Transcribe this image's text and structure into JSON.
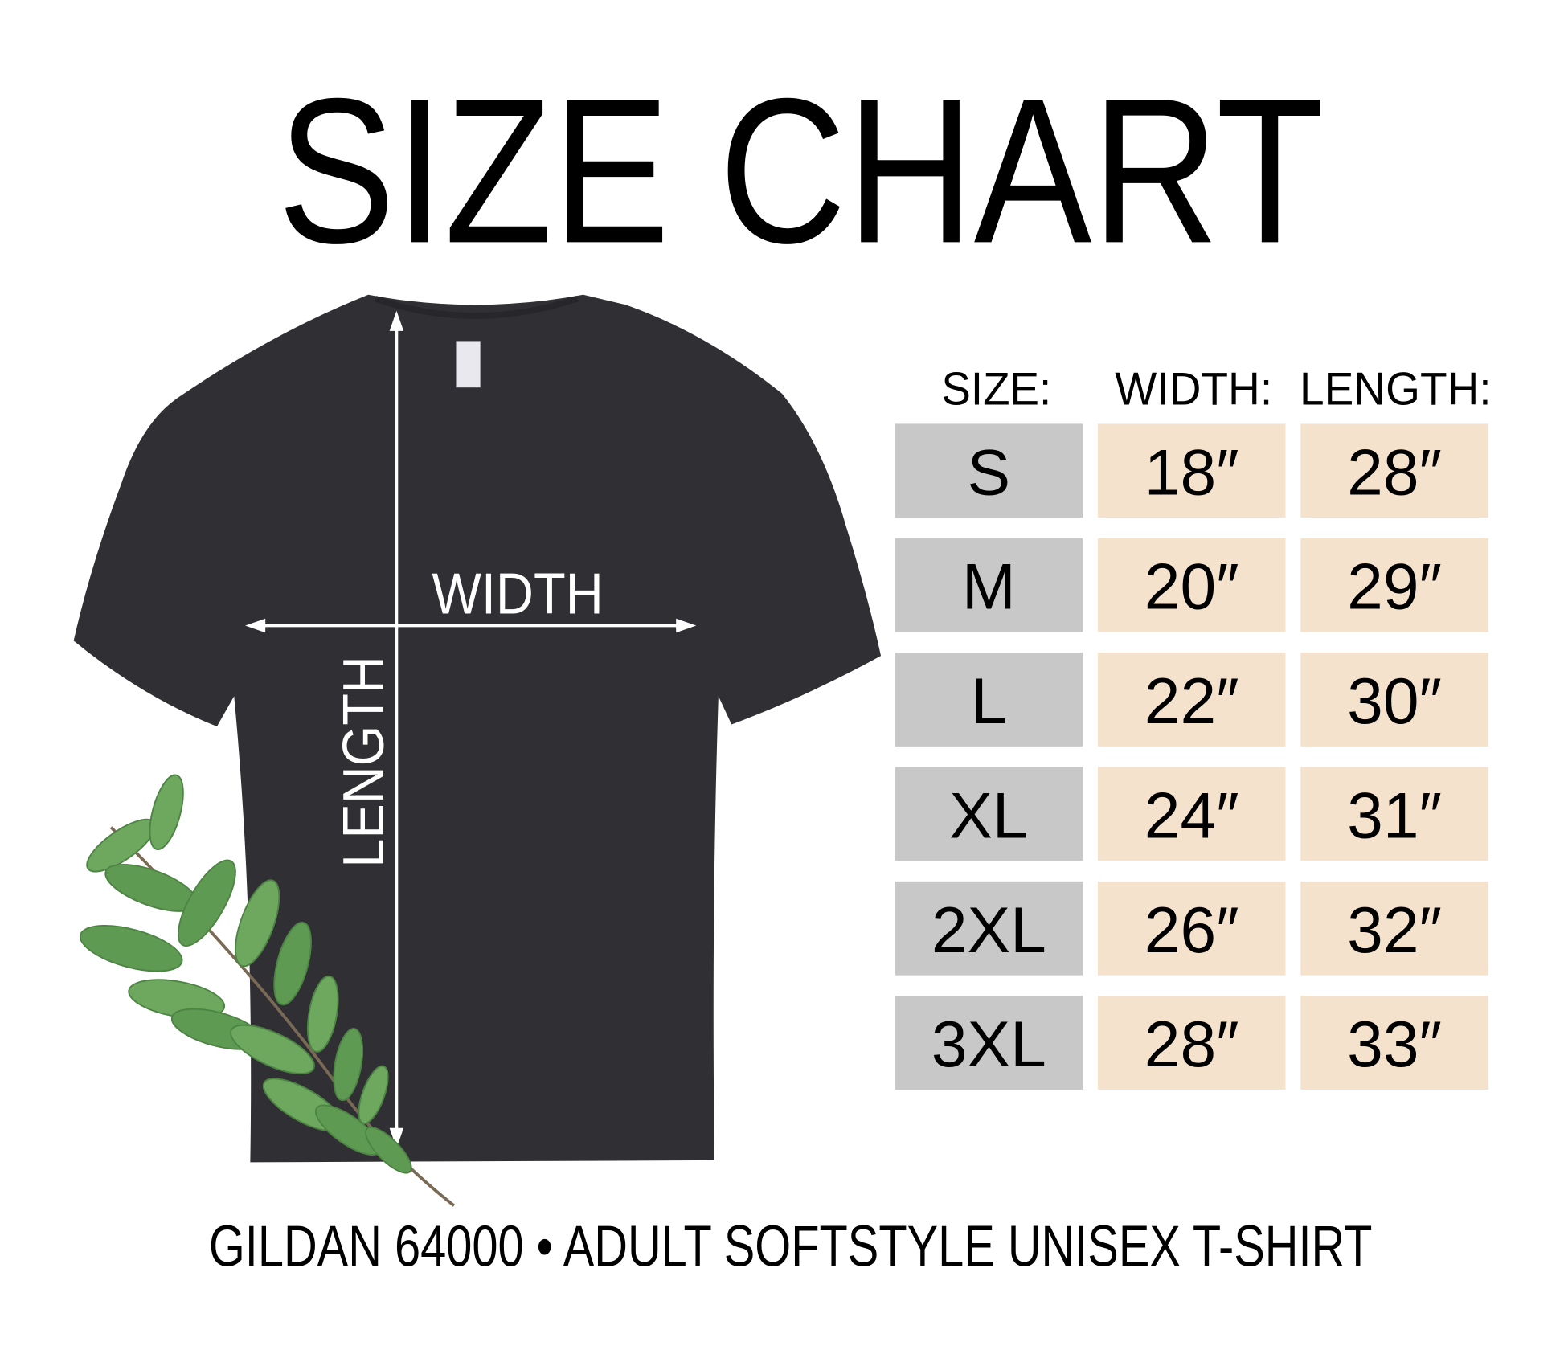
{
  "title": "SIZE CHART",
  "garment": {
    "width_label": "WIDTH",
    "length_label": "LENGTH",
    "shirt_color": "#2f2f34"
  },
  "footer": "GILDAN 64000 • ADULT SOFTSTYLE UNISEX T-SHIRT",
  "colors": {
    "size_cell": "#c8c8c8",
    "value_cell": "#f5e2cd",
    "text": "#000000"
  },
  "chart_data": {
    "type": "table",
    "columns": [
      "SIZE:",
      "WIDTH:",
      "LENGTH:"
    ],
    "rows": [
      {
        "size": "S",
        "width": "18″",
        "length": "28″"
      },
      {
        "size": "M",
        "width": "20″",
        "length": "29″"
      },
      {
        "size": "L",
        "width": "22″",
        "length": "30″"
      },
      {
        "size": "XL",
        "width": "24″",
        "length": "31″"
      },
      {
        "size": "2XL",
        "width": "26″",
        "length": "32″"
      },
      {
        "size": "3XL",
        "width": "28″",
        "length": "33″"
      }
    ]
  }
}
